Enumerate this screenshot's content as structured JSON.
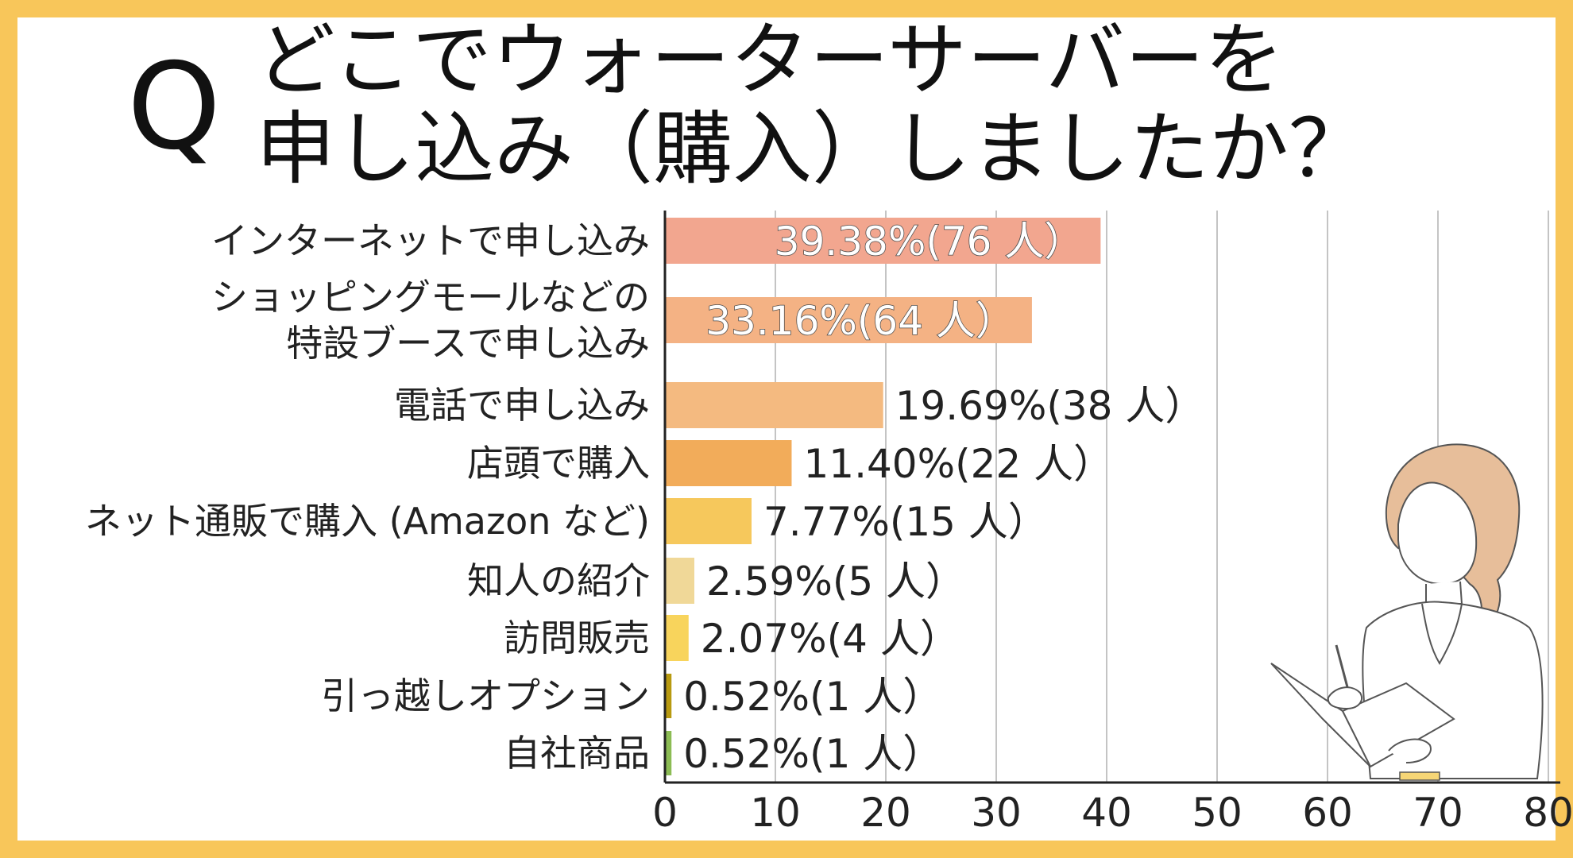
{
  "title": {
    "q_mark": "Q",
    "line1": "どこでウォーターサーバーを",
    "line2": "申し込み（購入）しましたか？"
  },
  "chart_data": {
    "type": "bar",
    "orientation": "horizontal",
    "categories": [
      [
        "インターネットで申し込み"
      ],
      [
        "ショッピングモールなどの",
        "特設ブースで申し込み"
      ],
      [
        "電話で申し込み"
      ],
      [
        "店頭で購入"
      ],
      [
        "ネット通販で購入 (Amazon など)"
      ],
      [
        "知人の紹介"
      ],
      [
        "訪問販売"
      ],
      [
        "引っ越しオプション"
      ],
      [
        "自社商品"
      ]
    ],
    "values": [
      39.38,
      33.16,
      19.69,
      11.4,
      7.77,
      2.59,
      2.07,
      0.52,
      0.52
    ],
    "data_labels": [
      "39.38%(76 人）",
      "33.16%(64 人）",
      "19.69%(38 人）",
      "11.40%(22 人）",
      "7.77%(15 人）",
      "2.59%(5 人）",
      "2.07%(4 人）",
      "0.52%(1 人）",
      "0.52%(1 人）"
    ],
    "colors": [
      "#f2a68f",
      "#f4b284",
      "#f4ba80",
      "#f2ac5a",
      "#f6c85c",
      "#f0d898",
      "#f8d45c",
      "#b89a10",
      "#8cbc54"
    ],
    "xlim": [
      0,
      80
    ],
    "xticks": [
      0,
      10,
      20,
      30,
      40,
      50,
      60,
      70,
      80
    ],
    "xlabel": "",
    "ylabel": "",
    "grid": "vertical"
  }
}
